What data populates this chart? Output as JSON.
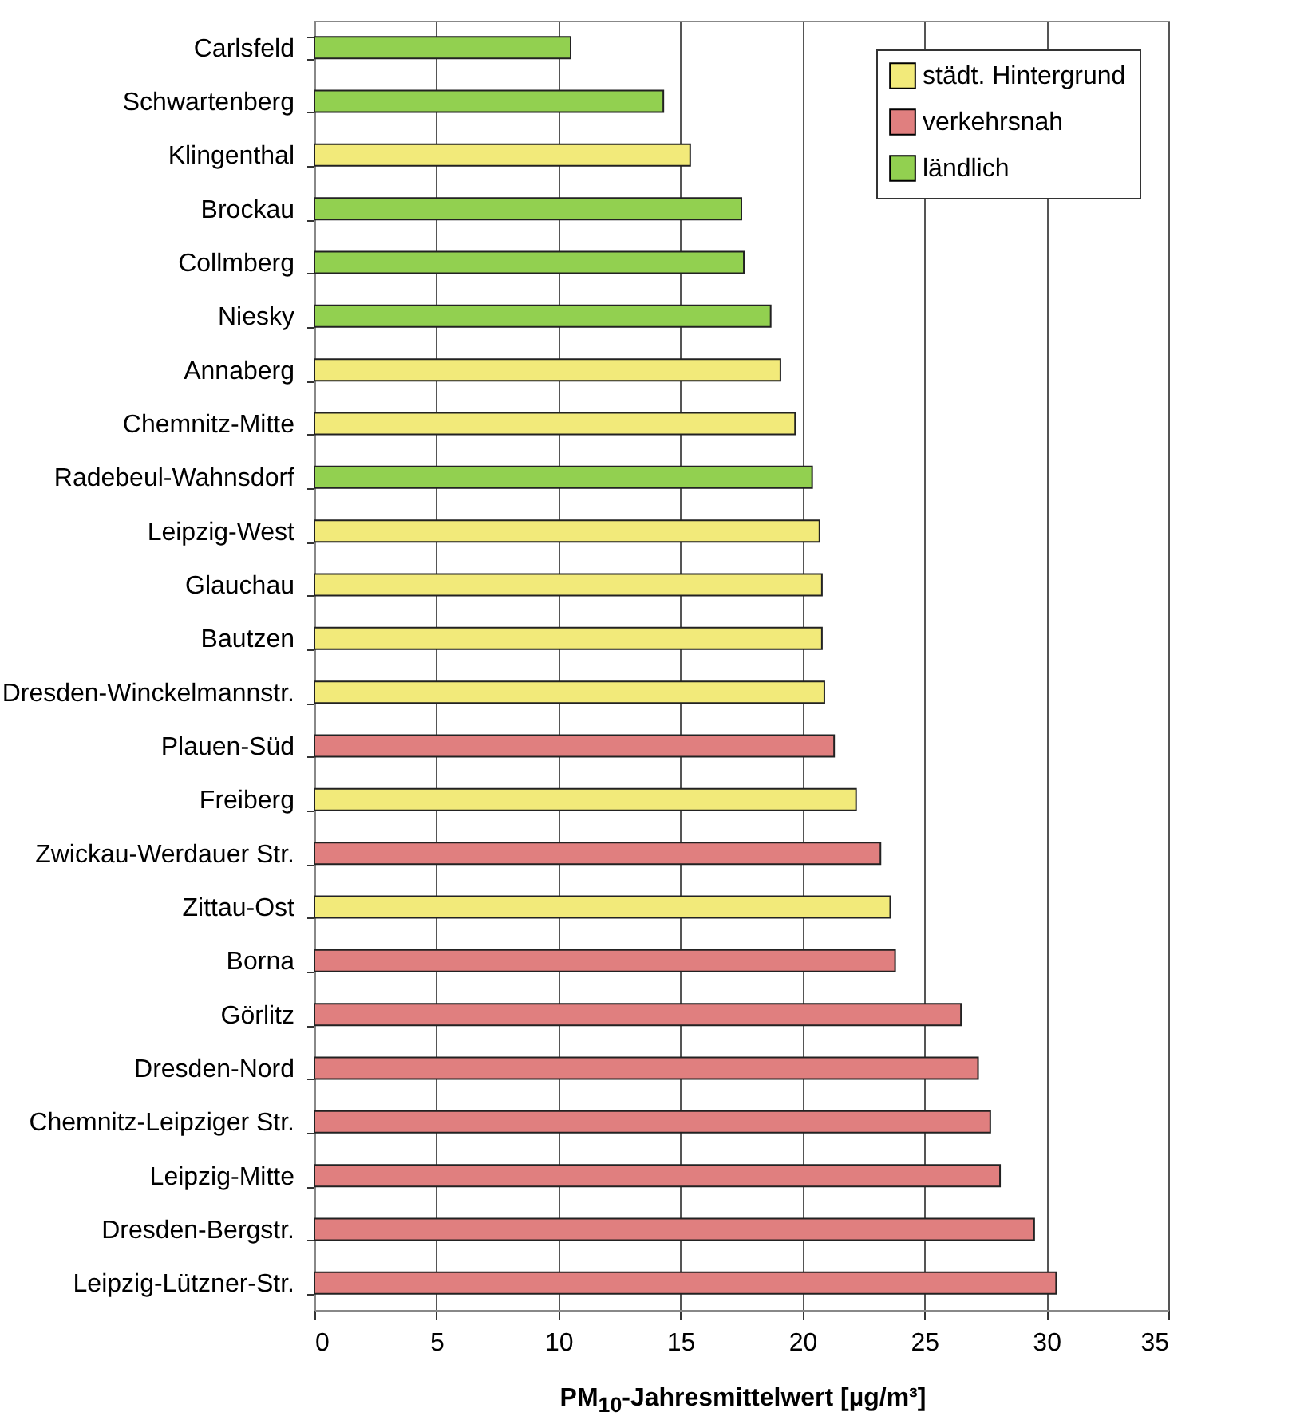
{
  "chart_data": {
    "type": "bar",
    "orientation": "horizontal",
    "xlabel": "PM$_{10}$-Jahresmittelwert [µg/m³]",
    "categories": [
      "Carlsfeld",
      "Schwartenberg",
      "Klingenthal",
      "Brockau",
      "Collmberg",
      "Niesky",
      "Annaberg",
      "Chemnitz-Mitte",
      "Radebeul-Wahnsdorf",
      "Leipzig-West",
      "Glauchau",
      "Bautzen",
      "Dresden-Winckelmannstr.",
      "Plauen-Süd",
      "Freiberg",
      "Zwickau-Werdauer Str.",
      "Zittau-Ost",
      "Borna",
      "Görlitz",
      "Dresden-Nord",
      "Chemnitz-Leipziger Str.",
      "Leipzig-Mitte",
      "Dresden-Bergstr.",
      "Leipzig-Lützner-Str."
    ],
    "series": [
      {
        "name": "städt. Hintergrund",
        "color": "#f2ea7a",
        "values": [
          null,
          null,
          15.4,
          null,
          null,
          null,
          19.1,
          19.7,
          null,
          20.7,
          20.8,
          20.8,
          20.9,
          null,
          22.2,
          null,
          23.6,
          null,
          null,
          null,
          null,
          null,
          null,
          null
        ]
      },
      {
        "name": "verkehrsnah",
        "color": "#e07f7f",
        "values": [
          null,
          null,
          null,
          null,
          null,
          null,
          null,
          null,
          null,
          null,
          null,
          null,
          null,
          21.3,
          null,
          23.2,
          null,
          23.8,
          26.5,
          27.2,
          27.7,
          28.1,
          29.5,
          30.4
        ]
      },
      {
        "name": "ländlich",
        "color": "#92d050",
        "values": [
          10.5,
          14.3,
          null,
          17.5,
          17.6,
          18.7,
          null,
          null,
          20.4,
          null,
          null,
          null,
          null,
          null,
          null,
          null,
          null,
          null,
          null,
          null,
          null,
          null,
          null,
          null
        ]
      }
    ],
    "xlim": [
      0,
      35
    ],
    "xticks": [
      0,
      5,
      10,
      15,
      20,
      25,
      30,
      35
    ],
    "grid": "x",
    "legend": "top right"
  }
}
